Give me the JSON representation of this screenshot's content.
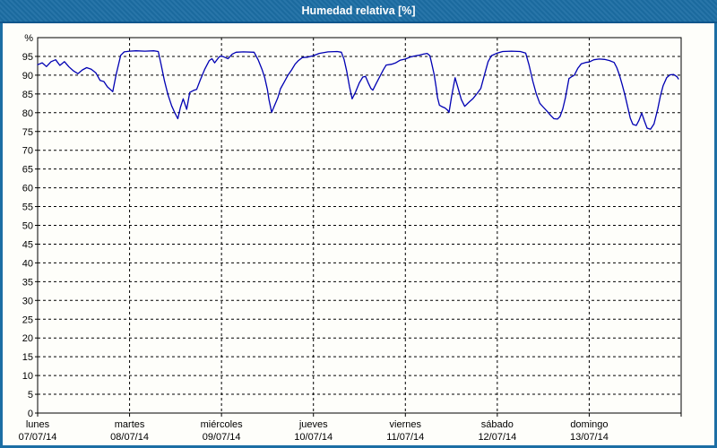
{
  "window": {
    "title": "Humedad relativa [%]"
  },
  "colors": {
    "titlebar_bg": "#1c6ea4",
    "titlebar_border": "#11568c",
    "frame": "#1c6ea4",
    "background": "#fefefa",
    "line": "#0000b3",
    "grid": "#000000",
    "title_text": "#ffffff"
  },
  "chart_data": {
    "type": "line",
    "title": "Humedad relativa [%]",
    "ylabel": "%",
    "y_top_label": "%",
    "ylim": [
      0,
      100
    ],
    "ytick_step": 5,
    "ytick_labels": [
      "0",
      "5",
      "10",
      "15",
      "20",
      "25",
      "30",
      "35",
      "40",
      "45",
      "50",
      "55",
      "60",
      "65",
      "70",
      "75",
      "80",
      "85",
      "90",
      "95"
    ],
    "grid": "dashed",
    "legend_position": "none",
    "x_range_hours": [
      0,
      168
    ],
    "x_axis": {
      "days": [
        {
          "name": "lunes",
          "date": "07/07/14"
        },
        {
          "name": "martes",
          "date": "08/07/14"
        },
        {
          "name": "miércoles",
          "date": "09/07/14"
        },
        {
          "name": "jueves",
          "date": "10/07/14"
        },
        {
          "name": "viernes",
          "date": "11/07/14"
        },
        {
          "name": "sábado",
          "date": "12/07/14"
        },
        {
          "name": "domingo",
          "date": "13/07/14"
        }
      ]
    },
    "series": [
      {
        "name": "Humedad relativa",
        "unit": "%",
        "color": "#0000b3",
        "points": [
          [
            0,
            92.8
          ],
          [
            1.2,
            93.3
          ],
          [
            2.3,
            92.3
          ],
          [
            3.5,
            93.6
          ],
          [
            4.7,
            94.1
          ],
          [
            5.8,
            92.6
          ],
          [
            7,
            93.6
          ],
          [
            8.2,
            92.2
          ],
          [
            9.3,
            91.2
          ],
          [
            10.5,
            90.4
          ],
          [
            11.7,
            91.4
          ],
          [
            12.8,
            92.0
          ],
          [
            14,
            91.6
          ],
          [
            15.2,
            90.6
          ],
          [
            16.3,
            88.6
          ],
          [
            17.3,
            88.3
          ],
          [
            18.2,
            86.9
          ],
          [
            19.6,
            85.6
          ],
          [
            20.5,
            90.2
          ],
          [
            21.7,
            95.3
          ],
          [
            22.6,
            96.2
          ],
          [
            24,
            96.4
          ],
          [
            25.7,
            96.5
          ],
          [
            28,
            96.4
          ],
          [
            30.3,
            96.5
          ],
          [
            31.5,
            96.3
          ],
          [
            32.2,
            93.0
          ],
          [
            33.1,
            88.5
          ],
          [
            34,
            84.9
          ],
          [
            35,
            81.8
          ],
          [
            35.9,
            79.8
          ],
          [
            36.6,
            78.4
          ],
          [
            37.3,
            81.5
          ],
          [
            38,
            83.7
          ],
          [
            38.9,
            80.9
          ],
          [
            39.7,
            85.4
          ],
          [
            40.8,
            86.0
          ],
          [
            41.5,
            86.2
          ],
          [
            42.5,
            88.8
          ],
          [
            43.6,
            91.5
          ],
          [
            44.8,
            93.9
          ],
          [
            45.5,
            94.4
          ],
          [
            46.2,
            93.3
          ],
          [
            47.4,
            94.9
          ],
          [
            48,
            95.1
          ],
          [
            49,
            94.7
          ],
          [
            49.7,
            94.4
          ],
          [
            50.8,
            95.6
          ],
          [
            51.8,
            96.1
          ],
          [
            53.7,
            96.2
          ],
          [
            56.5,
            96.1
          ],
          [
            57.6,
            94.0
          ],
          [
            58.6,
            91.5
          ],
          [
            59.3,
            89.3
          ],
          [
            60,
            86.1
          ],
          [
            60.4,
            83.5
          ],
          [
            61.1,
            80.1
          ],
          [
            61.8,
            81.8
          ],
          [
            62.7,
            84.0
          ],
          [
            63.4,
            86.4
          ],
          [
            64.4,
            88.2
          ],
          [
            65.3,
            89.9
          ],
          [
            66.3,
            91.4
          ],
          [
            67.2,
            92.9
          ],
          [
            68.1,
            93.9
          ],
          [
            69.1,
            94.7
          ],
          [
            70.5,
            94.8
          ],
          [
            72,
            95.2
          ],
          [
            73.5,
            95.8
          ],
          [
            75.8,
            96.2
          ],
          [
            78.2,
            96.3
          ],
          [
            79.3,
            96.1
          ],
          [
            80,
            94.2
          ],
          [
            80.7,
            91.0
          ],
          [
            81.4,
            87.0
          ],
          [
            82.1,
            83.7
          ],
          [
            83,
            85.5
          ],
          [
            84,
            88.0
          ],
          [
            84.9,
            89.5
          ],
          [
            85.6,
            89.7
          ],
          [
            86.3,
            88.0
          ],
          [
            87,
            86.5
          ],
          [
            87.5,
            86.0
          ],
          [
            88.4,
            87.8
          ],
          [
            89.3,
            89.6
          ],
          [
            90.3,
            91.5
          ],
          [
            91,
            92.7
          ],
          [
            92.4,
            92.9
          ],
          [
            93.5,
            93.3
          ],
          [
            94.7,
            94.0
          ],
          [
            96,
            94.3
          ],
          [
            97.2,
            94.8
          ],
          [
            98.4,
            95.1
          ],
          [
            99.5,
            95.3
          ],
          [
            100.7,
            95.6
          ],
          [
            101.7,
            95.8
          ],
          [
            102.4,
            95.2
          ],
          [
            102.8,
            93.5
          ],
          [
            103.5,
            90.3
          ],
          [
            104,
            87.0
          ],
          [
            104.4,
            84.0
          ],
          [
            104.9,
            82.0
          ],
          [
            105.6,
            81.6
          ],
          [
            106.3,
            81.3
          ],
          [
            107,
            80.7
          ],
          [
            107.4,
            80.1
          ],
          [
            108.1,
            84.5
          ],
          [
            109,
            89.3
          ],
          [
            109.7,
            86.8
          ],
          [
            110.6,
            83.5
          ],
          [
            111.5,
            81.7
          ],
          [
            112.7,
            82.9
          ],
          [
            113.6,
            83.7
          ],
          [
            114.8,
            85.2
          ],
          [
            115.7,
            86.5
          ],
          [
            116.7,
            90.3
          ],
          [
            117.6,
            93.6
          ],
          [
            118.5,
            95.2
          ],
          [
            120,
            95.9
          ],
          [
            121.4,
            96.3
          ],
          [
            123.7,
            96.4
          ],
          [
            126,
            96.3
          ],
          [
            127.4,
            95.9
          ],
          [
            128.3,
            92.7
          ],
          [
            129.3,
            88.3
          ],
          [
            130.2,
            85.0
          ],
          [
            131.1,
            82.5
          ],
          [
            132,
            81.5
          ],
          [
            132.9,
            80.5
          ],
          [
            133.9,
            79.3
          ],
          [
            134.8,
            78.4
          ],
          [
            135.7,
            78.3
          ],
          [
            136.4,
            79.0
          ],
          [
            137.1,
            81.0
          ],
          [
            137.8,
            84.0
          ],
          [
            138.7,
            89.1
          ],
          [
            139.4,
            89.6
          ],
          [
            140.1,
            90.0
          ],
          [
            141,
            91.8
          ],
          [
            141.9,
            93.0
          ],
          [
            143.1,
            93.4
          ],
          [
            144,
            93.5
          ],
          [
            145.2,
            94.1
          ],
          [
            146.6,
            94.3
          ],
          [
            148,
            94.2
          ],
          [
            149.3,
            93.9
          ],
          [
            150.5,
            93.4
          ],
          [
            151.2,
            92.0
          ],
          [
            151.9,
            90.0
          ],
          [
            152.6,
            87.5
          ],
          [
            153.3,
            84.8
          ],
          [
            154,
            81.7
          ],
          [
            154.7,
            78.6
          ],
          [
            155.4,
            76.9
          ],
          [
            156.3,
            76.6
          ],
          [
            157,
            78.0
          ],
          [
            157.7,
            79.9
          ],
          [
            158.4,
            77.8
          ],
          [
            159.1,
            75.9
          ],
          [
            160,
            75.6
          ],
          [
            160.9,
            77.0
          ],
          [
            161.9,
            81.0
          ],
          [
            162.6,
            84.5
          ],
          [
            163.3,
            87.2
          ],
          [
            164.2,
            89.3
          ],
          [
            165.1,
            90.1
          ],
          [
            166,
            90.2
          ],
          [
            166.9,
            89.6
          ],
          [
            167.3,
            89.0
          ]
        ]
      }
    ]
  }
}
